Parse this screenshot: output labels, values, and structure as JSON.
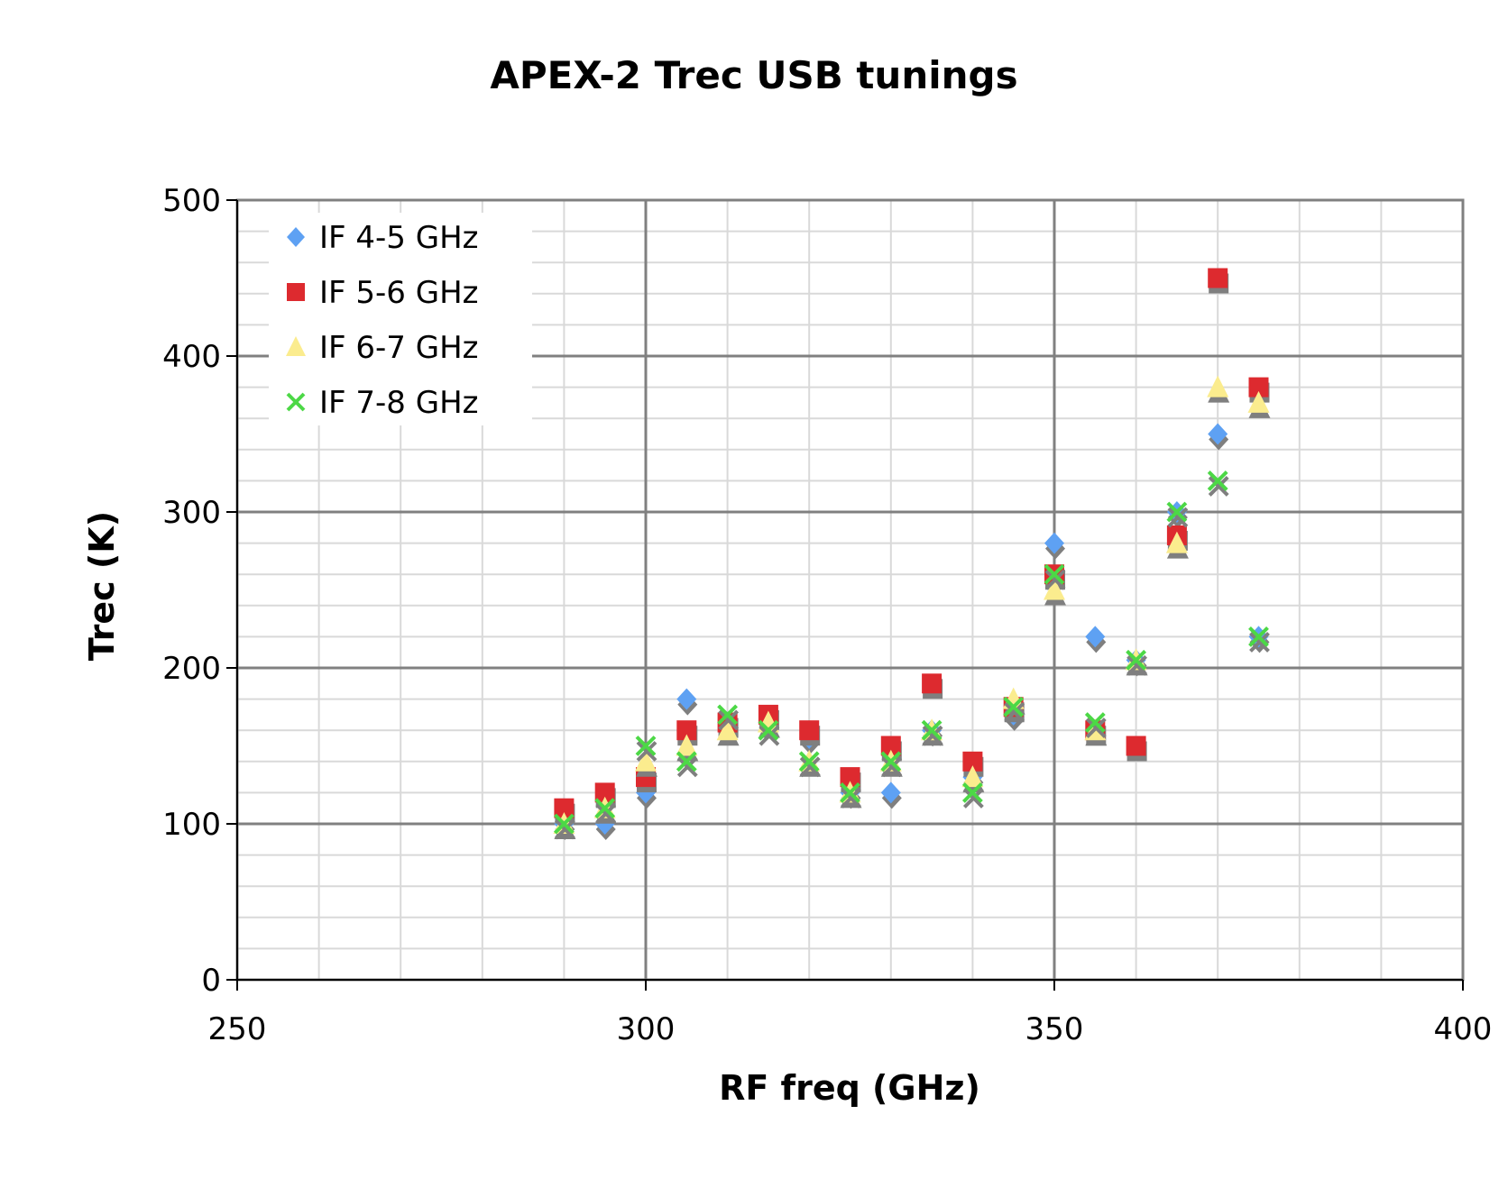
{
  "colors": {
    "series": [
      "#5ea1f3",
      "#dd2a2f",
      "#fbec8e",
      "#4cd846"
    ],
    "shadow": "#7f7f7f",
    "major_grid": "#808080",
    "minor_grid": "#d9d9d9",
    "frame": "#808080"
  },
  "chart_data": {
    "type": "scatter",
    "title": "APEX-2 Trec USB tunings",
    "xlabel": "RF freq (GHz)",
    "ylabel": "Trec (K)",
    "xlim": [
      250,
      400
    ],
    "ylim": [
      0,
      500
    ],
    "x_major_step": 50,
    "x_minor_step": 10,
    "y_major_step": 100,
    "y_minor_step": 20,
    "x_ticks": [
      "250",
      "300",
      "350",
      "400"
    ],
    "y_ticks": [
      "0",
      "100",
      "200",
      "300",
      "400",
      "500"
    ],
    "grid": true,
    "legend_position": "top-left",
    "x": [
      290,
      295,
      300,
      305,
      310,
      315,
      320,
      325,
      330,
      335,
      340,
      345,
      350,
      355,
      360,
      365,
      370,
      375
    ],
    "series": [
      {
        "name": "IF 4-5 GHz",
        "marker": "diamond",
        "values": [
          100,
          100,
          120,
          180,
          165,
          165,
          155,
          120,
          120,
          160,
          130,
          170,
          280,
          220,
          205,
          300,
          350,
          220
        ]
      },
      {
        "name": "IF 5-6 GHz",
        "marker": "square",
        "values": [
          110,
          120,
          130,
          160,
          165,
          170,
          160,
          130,
          150,
          190,
          140,
          175,
          260,
          160,
          150,
          285,
          450,
          380
        ]
      },
      {
        "name": "IF 6-7 GHz",
        "marker": "triangle",
        "values": [
          100,
          110,
          140,
          150,
          160,
          165,
          140,
          120,
          140,
          160,
          130,
          180,
          250,
          160,
          205,
          280,
          380,
          370
        ]
      },
      {
        "name": "IF 7-8 GHz",
        "marker": "x",
        "values": [
          100,
          110,
          150,
          140,
          170,
          160,
          140,
          120,
          140,
          160,
          120,
          175,
          260,
          165,
          205,
          300,
          320,
          220
        ]
      }
    ]
  }
}
